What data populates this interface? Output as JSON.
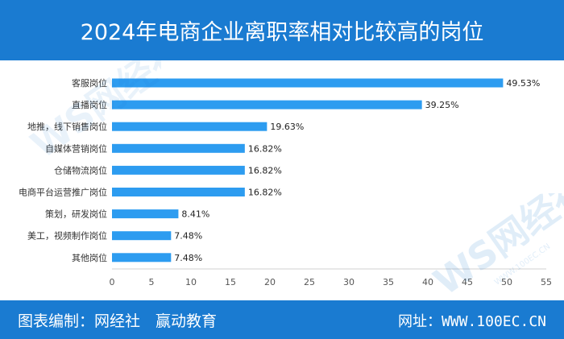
{
  "header": {
    "title": "2024年电商企业离职率相对比较高的岗位"
  },
  "footer": {
    "source": "图表编制：网经社　赢动教育",
    "website": "网址：WWW.100EC.CN"
  },
  "watermark": {
    "logo_text": "WS网经社",
    "url_text": "WWW.100EC.CN"
  },
  "colors": {
    "accent": "#1a7bd1",
    "bar": "#2d9cf0"
  },
  "chart_data": {
    "type": "bar",
    "orientation": "horizontal",
    "title": "2024年电商企业离职率相对比较高的岗位",
    "categories": [
      "客服岗位",
      "直播岗位",
      "地推，线下销售岗位",
      "自媒体营销岗位",
      "仓储物流岗位",
      "电商平台运营推广岗位",
      "策划，研发岗位",
      "美工，视频制作岗位",
      "其他岗位"
    ],
    "values": [
      49.53,
      39.25,
      19.63,
      16.82,
      16.82,
      16.82,
      8.41,
      7.48,
      7.48
    ],
    "data_labels": [
      "49.53%",
      "39.25%",
      "19.63%",
      "16.82%",
      "16.82%",
      "16.82%",
      "8.41%",
      "7.48%",
      "7.48%"
    ],
    "xlim": [
      0,
      55
    ],
    "xticks": [
      0,
      5,
      10,
      15,
      20,
      25,
      30,
      35,
      40,
      45,
      50,
      55
    ],
    "xlabel": "",
    "ylabel": "",
    "grid": false
  }
}
